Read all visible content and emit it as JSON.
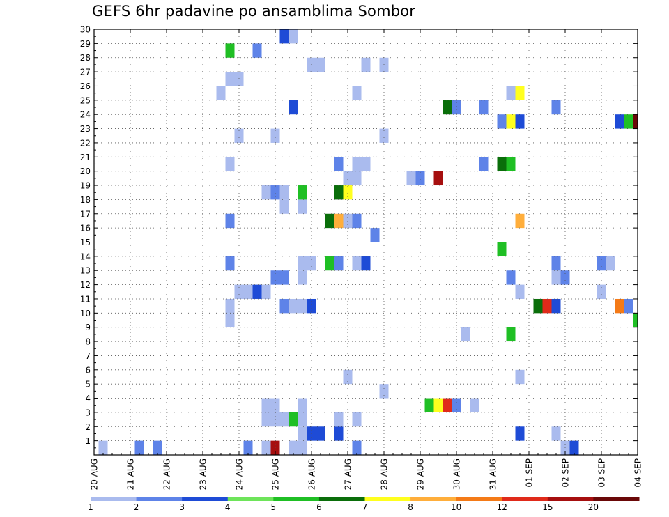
{
  "chart_data": {
    "type": "heatmap",
    "title": "GEFS 6hr padavine po ansamblima Sombor",
    "x_tick_labels": [
      "20 AUG",
      "21 AUG",
      "22 AUG",
      "23 AUG",
      "24 AUG",
      "25 AUG",
      "26 AUG",
      "27 AUG",
      "28 AUG",
      "29 AUG",
      "30 AUG",
      "31 AUG",
      "01 SEP",
      "02 SEP",
      "03 SEP",
      "04 SEP"
    ],
    "y_tick_labels": [
      "1",
      "2",
      "3",
      "4",
      "5",
      "6",
      "7",
      "8",
      "9",
      "10",
      "11",
      "12",
      "13",
      "14",
      "15",
      "16",
      "17",
      "18",
      "19",
      "20",
      "21",
      "22",
      "23",
      "24",
      "25",
      "26",
      "27",
      "28",
      "29",
      "30"
    ],
    "x_range_days": [
      0,
      15
    ],
    "y_range": [
      0,
      30
    ],
    "grid": true,
    "legend_position": "bottom",
    "levels": [
      1,
      2,
      3,
      4,
      5,
      6,
      7,
      8,
      10,
      12,
      15,
      20
    ],
    "colors": [
      "#aabbee",
      "#5e83e8",
      "#1e4bd6",
      "#6ee45a",
      "#1fbf24",
      "#0a6e0a",
      "#ffff1e",
      "#ffae3b",
      "#f47a17",
      "#e02a1a",
      "#a60f0f",
      "#6a0808"
    ],
    "points": [
      {
        "x": 0.25,
        "y": 0,
        "c": 0
      },
      {
        "x": 1.25,
        "y": 0,
        "c": 1
      },
      {
        "x": 1.75,
        "y": 0,
        "c": 1
      },
      {
        "x": 4.25,
        "y": 0,
        "c": 1
      },
      {
        "x": 5.5,
        "y": 0,
        "c": 0
      },
      {
        "x": 5.75,
        "y": 0,
        "c": 0
      },
      {
        "x": 5.0,
        "y": 0,
        "c": 10
      },
      {
        "x": 7.25,
        "y": 0,
        "c": 1
      },
      {
        "x": 13.0,
        "y": 0,
        "c": 0
      },
      {
        "x": 13.25,
        "y": 0,
        "c": 2
      },
      {
        "x": 4.75,
        "y": 0,
        "c": 0
      },
      {
        "x": 5.75,
        "y": 1,
        "c": 0
      },
      {
        "x": 6.0,
        "y": 1,
        "c": 2
      },
      {
        "x": 6.25,
        "y": 1,
        "c": 2
      },
      {
        "x": 6.75,
        "y": 1,
        "c": 2
      },
      {
        "x": 11.75,
        "y": 1,
        "c": 2
      },
      {
        "x": 12.75,
        "y": 1,
        "c": 0
      },
      {
        "x": 4.75,
        "y": 2,
        "c": 0
      },
      {
        "x": 5.0,
        "y": 2,
        "c": 0
      },
      {
        "x": 5.25,
        "y": 2,
        "c": 0
      },
      {
        "x": 5.5,
        "y": 2,
        "c": 4
      },
      {
        "x": 5.75,
        "y": 2,
        "c": 0
      },
      {
        "x": 6.75,
        "y": 2,
        "c": 0
      },
      {
        "x": 7.25,
        "y": 2,
        "c": 0
      },
      {
        "x": 4.75,
        "y": 3,
        "c": 0
      },
      {
        "x": 5.0,
        "y": 3,
        "c": 0
      },
      {
        "x": 5.75,
        "y": 3,
        "c": 0
      },
      {
        "x": 9.25,
        "y": 3,
        "c": 4
      },
      {
        "x": 9.5,
        "y": 3,
        "c": 6
      },
      {
        "x": 9.75,
        "y": 3,
        "c": 9
      },
      {
        "x": 10.0,
        "y": 3,
        "c": 1
      },
      {
        "x": 10.5,
        "y": 3,
        "c": 0
      },
      {
        "x": 8.0,
        "y": 4,
        "c": 0
      },
      {
        "x": 7.0,
        "y": 5,
        "c": 0
      },
      {
        "x": 11.75,
        "y": 5,
        "c": 0
      },
      {
        "x": 10.25,
        "y": 8,
        "c": 0
      },
      {
        "x": 11.5,
        "y": 8,
        "c": 4
      },
      {
        "x": 15.0,
        "y": 9,
        "c": 4
      },
      {
        "x": 3.75,
        "y": 9,
        "c": 0
      },
      {
        "x": 3.75,
        "y": 10,
        "c": 0
      },
      {
        "x": 5.25,
        "y": 10,
        "c": 1
      },
      {
        "x": 5.5,
        "y": 10,
        "c": 0
      },
      {
        "x": 5.75,
        "y": 10,
        "c": 0
      },
      {
        "x": 6.0,
        "y": 10,
        "c": 2
      },
      {
        "x": 12.25,
        "y": 10,
        "c": 5
      },
      {
        "x": 12.5,
        "y": 10,
        "c": 9
      },
      {
        "x": 12.75,
        "y": 10,
        "c": 2
      },
      {
        "x": 14.5,
        "y": 10,
        "c": 8
      },
      {
        "x": 14.75,
        "y": 10,
        "c": 1
      },
      {
        "x": 4.0,
        "y": 11,
        "c": 0
      },
      {
        "x": 4.25,
        "y": 11,
        "c": 0
      },
      {
        "x": 4.5,
        "y": 11,
        "c": 2
      },
      {
        "x": 4.75,
        "y": 11,
        "c": 0
      },
      {
        "x": 11.75,
        "y": 11,
        "c": 0
      },
      {
        "x": 14.0,
        "y": 11,
        "c": 0
      },
      {
        "x": 5.0,
        "y": 12,
        "c": 1
      },
      {
        "x": 5.25,
        "y": 12,
        "c": 1
      },
      {
        "x": 5.75,
        "y": 12,
        "c": 0
      },
      {
        "x": 11.5,
        "y": 12,
        "c": 1
      },
      {
        "x": 12.75,
        "y": 12,
        "c": 0
      },
      {
        "x": 13.0,
        "y": 12,
        "c": 1
      },
      {
        "x": 3.75,
        "y": 13,
        "c": 1
      },
      {
        "x": 5.75,
        "y": 13,
        "c": 0
      },
      {
        "x": 6.0,
        "y": 13,
        "c": 0
      },
      {
        "x": 6.5,
        "y": 13,
        "c": 4
      },
      {
        "x": 6.75,
        "y": 13,
        "c": 1
      },
      {
        "x": 7.25,
        "y": 13,
        "c": 0
      },
      {
        "x": 7.5,
        "y": 13,
        "c": 2
      },
      {
        "x": 12.75,
        "y": 13,
        "c": 1
      },
      {
        "x": 14.0,
        "y": 13,
        "c": 1
      },
      {
        "x": 14.25,
        "y": 13,
        "c": 0
      },
      {
        "x": 11.25,
        "y": 14,
        "c": 4
      },
      {
        "x": 7.75,
        "y": 15,
        "c": 1
      },
      {
        "x": 3.75,
        "y": 16,
        "c": 1
      },
      {
        "x": 6.5,
        "y": 16,
        "c": 5
      },
      {
        "x": 6.75,
        "y": 16,
        "c": 7
      },
      {
        "x": 7.0,
        "y": 16,
        "c": 0
      },
      {
        "x": 7.25,
        "y": 16,
        "c": 1
      },
      {
        "x": 11.75,
        "y": 16,
        "c": 7
      },
      {
        "x": 5.25,
        "y": 17,
        "c": 0
      },
      {
        "x": 5.75,
        "y": 17,
        "c": 0
      },
      {
        "x": 4.75,
        "y": 18,
        "c": 0
      },
      {
        "x": 5.0,
        "y": 18,
        "c": 1
      },
      {
        "x": 5.25,
        "y": 18,
        "c": 0
      },
      {
        "x": 5.75,
        "y": 18,
        "c": 4
      },
      {
        "x": 6.75,
        "y": 18,
        "c": 5
      },
      {
        "x": 7.0,
        "y": 18,
        "c": 6
      },
      {
        "x": 7.0,
        "y": 19,
        "c": 0
      },
      {
        "x": 7.25,
        "y": 19,
        "c": 0
      },
      {
        "x": 8.75,
        "y": 19,
        "c": 0
      },
      {
        "x": 9.0,
        "y": 19,
        "c": 1
      },
      {
        "x": 9.5,
        "y": 19,
        "c": 10
      },
      {
        "x": 3.75,
        "y": 20,
        "c": 0
      },
      {
        "x": 6.75,
        "y": 20,
        "c": 1
      },
      {
        "x": 7.25,
        "y": 20,
        "c": 0
      },
      {
        "x": 7.5,
        "y": 20,
        "c": 0
      },
      {
        "x": 10.75,
        "y": 20,
        "c": 1
      },
      {
        "x": 11.25,
        "y": 20,
        "c": 5
      },
      {
        "x": 11.5,
        "y": 20,
        "c": 4
      },
      {
        "x": 4.0,
        "y": 22,
        "c": 0
      },
      {
        "x": 5.0,
        "y": 22,
        "c": 0
      },
      {
        "x": 8.0,
        "y": 22,
        "c": 0
      },
      {
        "x": 11.25,
        "y": 23,
        "c": 1
      },
      {
        "x": 11.5,
        "y": 23,
        "c": 6
      },
      {
        "x": 11.75,
        "y": 23,
        "c": 2
      },
      {
        "x": 14.5,
        "y": 23,
        "c": 2
      },
      {
        "x": 14.75,
        "y": 23,
        "c": 4
      },
      {
        "x": 15.0,
        "y": 23,
        "c": 11
      },
      {
        "x": 5.5,
        "y": 24,
        "c": 2
      },
      {
        "x": 9.75,
        "y": 24,
        "c": 5
      },
      {
        "x": 10.0,
        "y": 24,
        "c": 1
      },
      {
        "x": 10.75,
        "y": 24,
        "c": 1
      },
      {
        "x": 12.75,
        "y": 24,
        "c": 1
      },
      {
        "x": 3.5,
        "y": 25,
        "c": 0
      },
      {
        "x": 7.25,
        "y": 25,
        "c": 0
      },
      {
        "x": 11.5,
        "y": 25,
        "c": 0
      },
      {
        "x": 11.75,
        "y": 25,
        "c": 6
      },
      {
        "x": 3.75,
        "y": 26,
        "c": 0
      },
      {
        "x": 4.0,
        "y": 26,
        "c": 0
      },
      {
        "x": 6.0,
        "y": 27,
        "c": 0
      },
      {
        "x": 6.25,
        "y": 27,
        "c": 0
      },
      {
        "x": 7.5,
        "y": 27,
        "c": 0
      },
      {
        "x": 8.0,
        "y": 27,
        "c": 0
      },
      {
        "x": 3.75,
        "y": 28,
        "c": 4
      },
      {
        "x": 4.5,
        "y": 28,
        "c": 1
      },
      {
        "x": 5.25,
        "y": 29,
        "c": 2
      },
      {
        "x": 5.5,
        "y": 29,
        "c": 0
      }
    ]
  }
}
